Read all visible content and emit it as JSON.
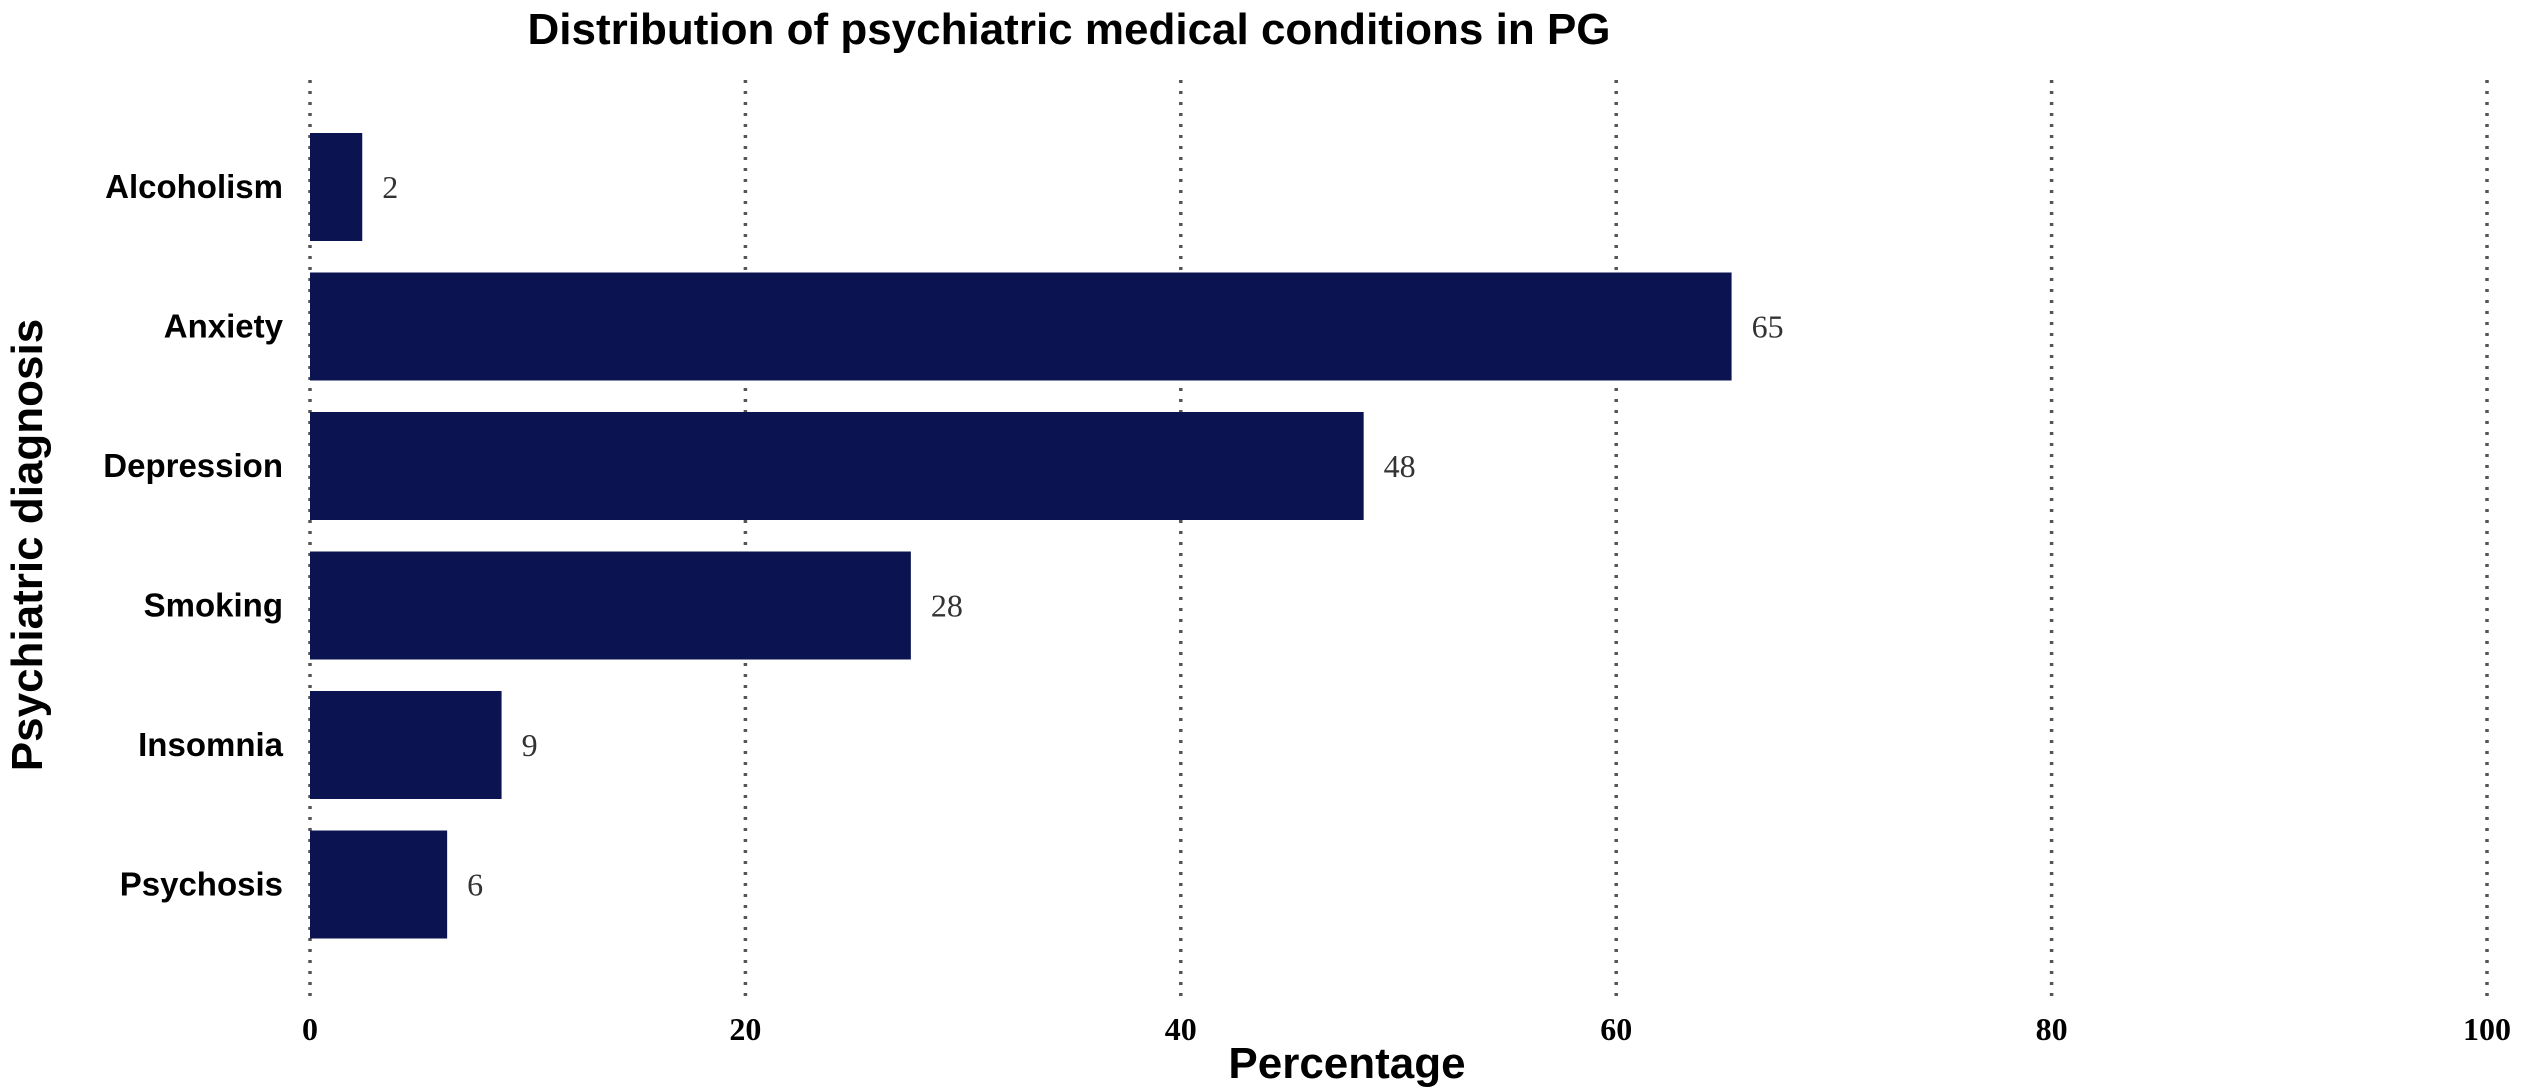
{
  "chart_data": {
    "type": "bar",
    "orientation": "horizontal",
    "title": "Distribution of psychiatric medical conditions in PG",
    "xlabel": "Percentage",
    "ylabel": "Psychiatric diagnosis",
    "categories": [
      "Alcoholism",
      "Anxiety",
      "Depression",
      "Smoking",
      "Insomnia",
      "Psychosis"
    ],
    "values": [
      2.4,
      65.3,
      48.4,
      27.6,
      8.8,
      6.3
    ],
    "data_labels": [
      "2",
      "65",
      "48",
      "28",
      "9",
      "6"
    ],
    "xlim": [
      0,
      100
    ],
    "xticks": [
      0,
      20,
      40,
      60,
      80,
      100
    ],
    "xtick_labels": [
      "0",
      "20",
      "40",
      "60",
      "80",
      "100"
    ],
    "grid": "vertical dotted",
    "bar_color": "#0b1450"
  }
}
